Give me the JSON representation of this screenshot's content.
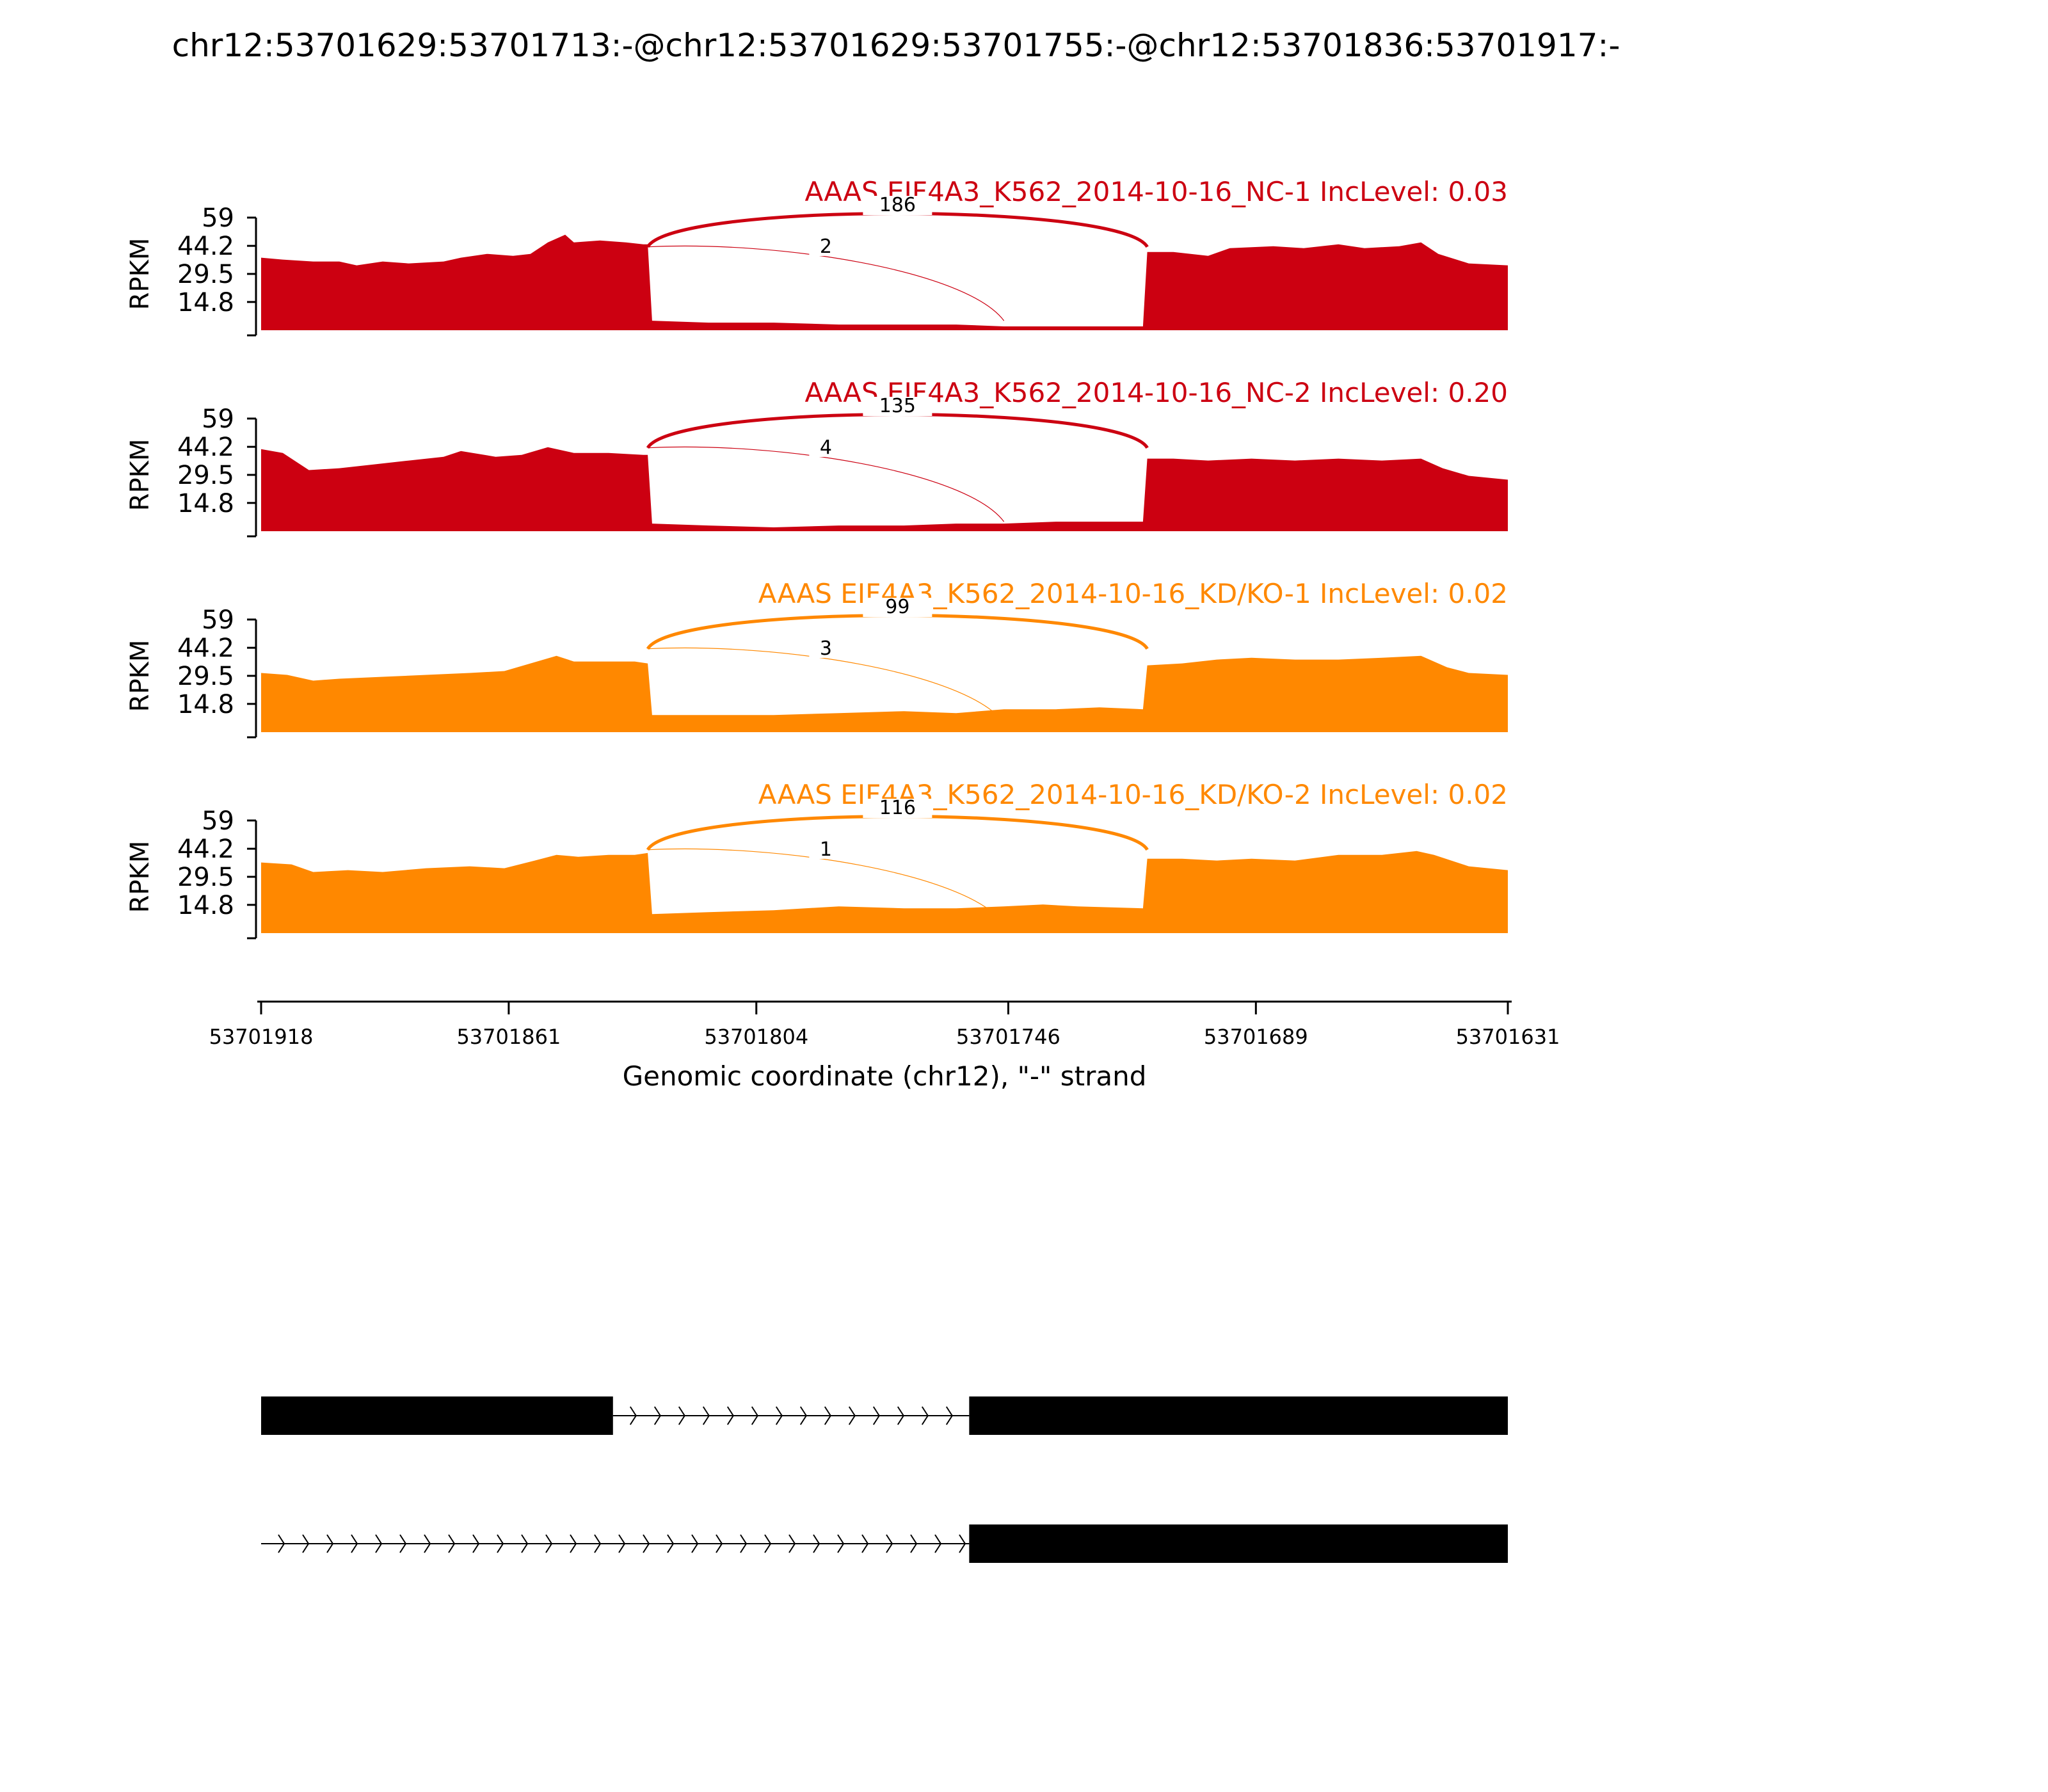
{
  "chart_data": {
    "type": "area",
    "title": "chr12:53701629:53701713:-@chr12:53701629:53701755:-@chr12:53701836:53701917:-",
    "ylabel": "RPKM",
    "xlabel": "Genomic coordinate (chr12), \"-\" strand",
    "x_range": [
      53701918,
      53701631
    ],
    "xticks": [
      "53701918",
      "53701861",
      "53701804",
      "53701746",
      "53701689",
      "53701631"
    ],
    "yticks": [
      "59",
      "44.2",
      "29.5",
      "14.8"
    ],
    "ylim": [
      0,
      59
    ],
    "exon_boundaries": [
      53701829,
      53701747,
      53701714
    ],
    "colors": {
      "NC": "#cc0011",
      "KD": "#ff8800"
    },
    "tracks": [
      {
        "name": "AAAS EIF4A3_K562_2014-10-16_NC-1 IncLevel: 0.03",
        "color": "#cc0011",
        "junctions": [
          {
            "from": 53701829,
            "to": 53701714,
            "count": "186",
            "major": true
          },
          {
            "from": 53701829,
            "to": 53701747,
            "count": "2",
            "major": false
          }
        ],
        "coverage": [
          [
            53701918,
            38
          ],
          [
            53701913,
            37
          ],
          [
            53701906,
            36
          ],
          [
            53701900,
            36
          ],
          [
            53701896,
            34
          ],
          [
            53701890,
            36
          ],
          [
            53701884,
            35
          ],
          [
            53701876,
            36
          ],
          [
            53701872,
            38
          ],
          [
            53701866,
            40
          ],
          [
            53701860,
            39
          ],
          [
            53701856,
            40
          ],
          [
            53701852,
            46
          ],
          [
            53701848,
            50
          ],
          [
            53701846,
            46
          ],
          [
            53701840,
            47
          ],
          [
            53701834,
            46
          ],
          [
            53701830,
            45
          ],
          [
            53701829,
            45
          ],
          [
            53701828,
            5
          ],
          [
            53701815,
            4
          ],
          [
            53701800,
            4
          ],
          [
            53701785,
            3
          ],
          [
            53701770,
            3
          ],
          [
            53701758,
            3
          ],
          [
            53701747,
            2
          ],
          [
            53701735,
            2
          ],
          [
            53701725,
            2
          ],
          [
            53701715,
            2
          ],
          [
            53701714,
            41
          ],
          [
            53701708,
            41
          ],
          [
            53701700,
            39
          ],
          [
            53701695,
            43
          ],
          [
            53701685,
            44
          ],
          [
            53701678,
            43
          ],
          [
            53701670,
            45
          ],
          [
            53701664,
            43
          ],
          [
            53701656,
            44
          ],
          [
            53701651,
            46
          ],
          [
            53701647,
            40
          ],
          [
            53701640,
            35
          ],
          [
            53701631,
            34
          ]
        ]
      },
      {
        "name": "AAAS EIF4A3_K562_2014-10-16_NC-2 IncLevel: 0.20",
        "color": "#cc0011",
        "junctions": [
          {
            "from": 53701829,
            "to": 53701714,
            "count": "135",
            "major": true
          },
          {
            "from": 53701829,
            "to": 53701747,
            "count": "4",
            "major": false
          }
        ],
        "coverage": [
          [
            53701918,
            43
          ],
          [
            53701913,
            41
          ],
          [
            53701907,
            32
          ],
          [
            53701900,
            33
          ],
          [
            53701892,
            35
          ],
          [
            53701884,
            37
          ],
          [
            53701876,
            39
          ],
          [
            53701872,
            42
          ],
          [
            53701864,
            39
          ],
          [
            53701858,
            40
          ],
          [
            53701852,
            44
          ],
          [
            53701846,
            41
          ],
          [
            53701838,
            41
          ],
          [
            53701830,
            40
          ],
          [
            53701829,
            40
          ],
          [
            53701828,
            4
          ],
          [
            53701815,
            3
          ],
          [
            53701800,
            2
          ],
          [
            53701785,
            3
          ],
          [
            53701770,
            3
          ],
          [
            53701758,
            4
          ],
          [
            53701747,
            4
          ],
          [
            53701735,
            5
          ],
          [
            53701725,
            5
          ],
          [
            53701715,
            5
          ],
          [
            53701714,
            38
          ],
          [
            53701708,
            38
          ],
          [
            53701700,
            37
          ],
          [
            53701690,
            38
          ],
          [
            53701680,
            37
          ],
          [
            53701670,
            38
          ],
          [
            53701660,
            37
          ],
          [
            53701651,
            38
          ],
          [
            53701646,
            33
          ],
          [
            53701640,
            29
          ],
          [
            53701631,
            27
          ]
        ]
      },
      {
        "name": "AAAS EIF4A3_K562_2014-10-16_KD/KO-1 IncLevel: 0.02",
        "color": "#ff8800",
        "junctions": [
          {
            "from": 53701829,
            "to": 53701714,
            "count": "99",
            "major": true
          },
          {
            "from": 53701829,
            "to": 53701747,
            "count": "3",
            "major": false
          }
        ],
        "coverage": [
          [
            53701918,
            31
          ],
          [
            53701912,
            30
          ],
          [
            53701906,
            27
          ],
          [
            53701900,
            28
          ],
          [
            53701890,
            29
          ],
          [
            53701880,
            30
          ],
          [
            53701870,
            31
          ],
          [
            53701862,
            32
          ],
          [
            53701856,
            36
          ],
          [
            53701850,
            40
          ],
          [
            53701846,
            37
          ],
          [
            53701840,
            37
          ],
          [
            53701832,
            37
          ],
          [
            53701829,
            36
          ],
          [
            53701828,
            9
          ],
          [
            53701815,
            9
          ],
          [
            53701800,
            9
          ],
          [
            53701785,
            10
          ],
          [
            53701770,
            11
          ],
          [
            53701758,
            10
          ],
          [
            53701747,
            12
          ],
          [
            53701735,
            12
          ],
          [
            53701725,
            13
          ],
          [
            53701715,
            12
          ],
          [
            53701714,
            35
          ],
          [
            53701706,
            36
          ],
          [
            53701698,
            38
          ],
          [
            53701690,
            39
          ],
          [
            53701680,
            38
          ],
          [
            53701670,
            38
          ],
          [
            53701660,
            39
          ],
          [
            53701651,
            40
          ],
          [
            53701645,
            34
          ],
          [
            53701640,
            31
          ],
          [
            53701631,
            30
          ]
        ]
      },
      {
        "name": "AAAS EIF4A3_K562_2014-10-16_KD/KO-2 IncLevel: 0.02",
        "color": "#ff8800",
        "junctions": [
          {
            "from": 53701829,
            "to": 53701714,
            "count": "116",
            "major": true
          },
          {
            "from": 53701829,
            "to": 53701747,
            "count": "1",
            "major": false
          }
        ],
        "coverage": [
          [
            53701918,
            37
          ],
          [
            53701911,
            36
          ],
          [
            53701906,
            32
          ],
          [
            53701898,
            33
          ],
          [
            53701890,
            32
          ],
          [
            53701880,
            34
          ],
          [
            53701870,
            35
          ],
          [
            53701862,
            34
          ],
          [
            53701855,
            38
          ],
          [
            53701850,
            41
          ],
          [
            53701845,
            40
          ],
          [
            53701838,
            41
          ],
          [
            53701832,
            41
          ],
          [
            53701829,
            42
          ],
          [
            53701828,
            10
          ],
          [
            53701815,
            11
          ],
          [
            53701800,
            12
          ],
          [
            53701785,
            14
          ],
          [
            53701770,
            13
          ],
          [
            53701758,
            13
          ],
          [
            53701747,
            14
          ],
          [
            53701738,
            15
          ],
          [
            53701730,
            14
          ],
          [
            53701715,
            13
          ],
          [
            53701714,
            39
          ],
          [
            53701706,
            39
          ],
          [
            53701698,
            38
          ],
          [
            53701690,
            39
          ],
          [
            53701680,
            38
          ],
          [
            53701670,
            41
          ],
          [
            53701660,
            41
          ],
          [
            53701652,
            43
          ],
          [
            53701648,
            41
          ],
          [
            53701640,
            35
          ],
          [
            53701631,
            33
          ]
        ]
      }
    ],
    "transcripts": [
      {
        "exons": [
          [
            53701918,
            53701837
          ],
          [
            53701755,
            53701631
          ]
        ],
        "intron": [
          53701837,
          53701755
        ]
      },
      {
        "exons": [
          [
            53701755,
            53701631
          ]
        ],
        "intron": [
          53701918,
          53701755
        ]
      }
    ]
  }
}
